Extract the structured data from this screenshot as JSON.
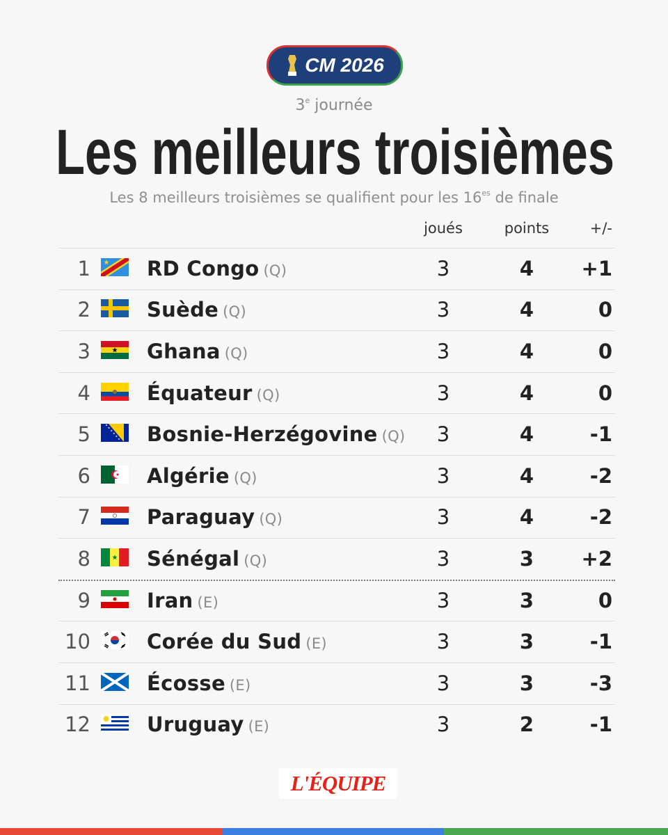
{
  "logo": {
    "text": "CM 2026"
  },
  "round": {
    "number": "3",
    "sup": "e",
    "text": "journée"
  },
  "title": "Les meilleurs troisièmes",
  "note": {
    "text": "Les 8 meilleurs troisièmes se qualifient pour les 16",
    "sup": "es",
    "after": "de finale"
  },
  "table": {
    "columns": [
      "joués",
      "points",
      "+/-"
    ],
    "rows": [
      {
        "rank": 1,
        "team": "RD Congo",
        "tag": "(Q)",
        "played": 3,
        "points": 4,
        "diff": "+1"
      },
      {
        "rank": 2,
        "team": "Suède",
        "tag": "(Q)",
        "played": 3,
        "points": 4,
        "diff": "0"
      },
      {
        "rank": 3,
        "team": "Ghana",
        "tag": "(Q)",
        "played": 3,
        "points": 4,
        "diff": "0"
      },
      {
        "rank": 4,
        "team": "Équateur",
        "tag": "(Q)",
        "played": 3,
        "points": 4,
        "diff": "0"
      },
      {
        "rank": 5,
        "team": "Bosnie-Herzégovine",
        "tag": "(Q)",
        "played": 3,
        "points": 4,
        "diff": "-1"
      },
      {
        "rank": 6,
        "team": "Algérie",
        "tag": "(Q)",
        "played": 3,
        "points": 4,
        "diff": "-2"
      },
      {
        "rank": 7,
        "team": "Paraguay",
        "tag": "(Q)",
        "played": 3,
        "points": 4,
        "diff": "-2"
      },
      {
        "rank": 8,
        "team": "Sénégal",
        "tag": "(Q)",
        "played": 3,
        "points": 3,
        "diff": "+2"
      },
      {
        "rank": 9,
        "team": "Iran",
        "tag": "(E)",
        "played": 3,
        "points": 3,
        "diff": "0"
      },
      {
        "rank": 10,
        "team": "Corée du Sud",
        "tag": "(E)",
        "played": 3,
        "points": 3,
        "diff": "-1"
      },
      {
        "rank": 11,
        "team": "Écosse",
        "tag": "(E)",
        "played": 3,
        "points": 3,
        "diff": "-3"
      },
      {
        "rank": 12,
        "team": "Uruguay",
        "tag": "(E)",
        "played": 3,
        "points": 2,
        "diff": "-1"
      }
    ]
  },
  "footer": {
    "brand": "L'ÉQUIPE"
  }
}
